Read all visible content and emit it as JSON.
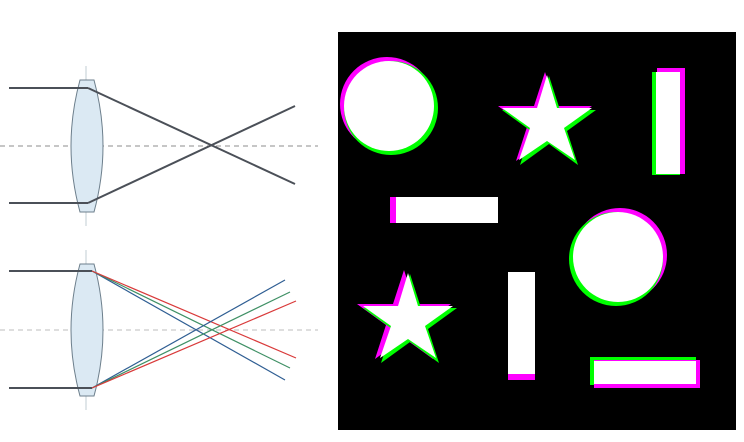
{
  "diagram": {
    "kind": "optics-illustration",
    "colors": {
      "background": "#ffffff",
      "lens_fill": "#dbe9f3",
      "lens_stroke": "#6d7f8c",
      "ray_gray": "#4b5058",
      "ray_blue": "#2f5e93",
      "ray_green": "#3f9065",
      "ray_red": "#d93a3a",
      "axis_dashed": "#8c8c8c",
      "axis_dashed_light": "#bdbdbd"
    },
    "panels": [
      {
        "name": "monochromatic-lens-diagram",
        "rays": [
          "gray"
        ],
        "focus": "single"
      },
      {
        "name": "chromatic-dispersion-lens-diagram",
        "rays": [
          "blue",
          "green",
          "red"
        ],
        "focus": "dispersed"
      },
      {
        "name": "chromatic-aberration-shapes",
        "background": "#000000",
        "shape_fill": "#ffffff",
        "fringe_colors": [
          "#ff00ff",
          "#00ff00"
        ],
        "shapes": [
          "circle",
          "star",
          "vertical-bar",
          "horizontal-bar",
          "circle",
          "star",
          "vertical-bar",
          "horizontal-bar"
        ]
      }
    ]
  }
}
